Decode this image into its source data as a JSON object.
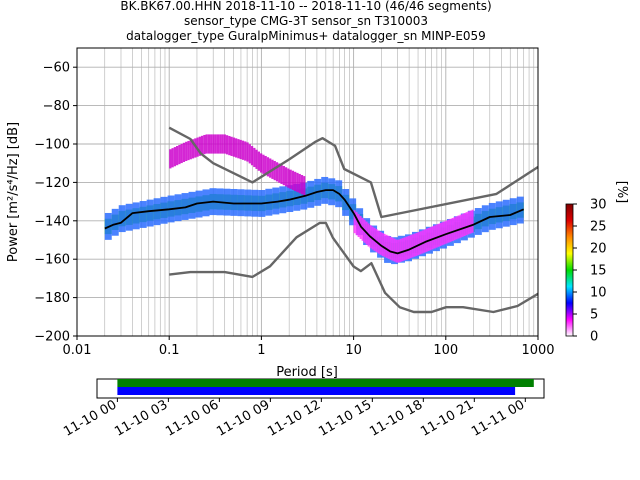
{
  "chart_data": {
    "type": "heatmap",
    "title_lines": [
      "BK.BK67.00.HHN   2018-11-10 -- 2018-11-10  (46/46 segments)",
      "sensor_type CMG-3T sensor_sn T310003",
      "datalogger_type GuralpMinimus+ datalogger_sn MINP-E059"
    ],
    "xlabel": "Period [s]",
    "ylabel": "Power [m²/s⁴/Hz] [dB]",
    "xscale": "log",
    "xlim": [
      0.01,
      1000
    ],
    "ylim": [
      -200,
      -50
    ],
    "x_ticks": [
      {
        "value": 0.01,
        "label": "0.01"
      },
      {
        "value": 0.1,
        "label": "0.1"
      },
      {
        "value": 1,
        "label": "1"
      },
      {
        "value": 10,
        "label": "10"
      },
      {
        "value": 100,
        "label": "100"
      },
      {
        "value": 1000,
        "label": "1000"
      }
    ],
    "y_ticks": [
      {
        "value": -60,
        "label": "−60"
      },
      {
        "value": -80,
        "label": "−80"
      },
      {
        "value": -100,
        "label": "−100"
      },
      {
        "value": -120,
        "label": "−120"
      },
      {
        "value": -140,
        "label": "−140"
      },
      {
        "value": -160,
        "label": "−160"
      },
      {
        "value": -180,
        "label": "−180"
      },
      {
        "value": -200,
        "label": "−200"
      }
    ],
    "grid": true,
    "series": [
      {
        "role": "mean",
        "color": "#000000",
        "x": [
          0.02,
          0.025,
          0.03,
          0.04,
          0.06,
          0.1,
          0.15,
          0.2,
          0.3,
          0.5,
          0.8,
          1,
          1.5,
          2,
          3,
          4,
          5,
          6,
          7,
          8,
          10,
          12,
          15,
          20,
          25,
          30,
          40,
          60,
          100,
          200,
          300,
          500,
          700
        ],
        "y": [
          -144,
          -142,
          -141,
          -136,
          -135,
          -134,
          -133,
          -131,
          -130,
          -131,
          -131,
          -131,
          -130,
          -129,
          -127,
          -125,
          -124,
          -124,
          -126,
          -129,
          -136,
          -143,
          -148,
          -153,
          -156,
          -157,
          -155,
          -151,
          -147,
          -142,
          -138,
          -137,
          -134
        ]
      },
      {
        "role": "high_noise_model",
        "color": "#666666",
        "x": [
          0.1,
          0.17,
          0.22,
          0.3,
          0.8,
          2,
          3.8,
          4.6,
          6.3,
          7.9,
          15.4,
          20,
          354.8,
          1000
        ],
        "y": [
          -91.5,
          -97.4,
          -105,
          -110,
          -120,
          -108,
          -99,
          -97,
          -101,
          -113,
          -120,
          -138,
          -126,
          -112
        ]
      },
      {
        "role": "low_noise_model",
        "color": "#666666",
        "x": [
          0.1,
          0.17,
          0.4,
          0.8,
          1.24,
          2.4,
          4.3,
          5,
          6,
          10,
          12,
          15.6,
          21.9,
          31.6,
          45,
          70,
          101,
          154,
          328,
          600,
          1000
        ],
        "y": [
          -168,
          -166.7,
          -166.7,
          -169.2,
          -163.7,
          -148.6,
          -141.1,
          -141.1,
          -149,
          -163.8,
          -166.2,
          -162.1,
          -177.5,
          -185,
          -187.5,
          -187.5,
          -185,
          -185,
          -187.5,
          -184.4,
          -178
        ]
      }
    ],
    "density_bands": [
      {
        "x": [
          0.02,
          0.03,
          0.1,
          0.3,
          1,
          3,
          5,
          7,
          10,
          15,
          25,
          40,
          100,
          300,
          700
        ],
        "y_center": [
          -144,
          -139,
          -134,
          -130,
          -131,
          -127,
          -124,
          -126,
          -136,
          -148,
          -156,
          -154,
          -147,
          -138,
          -134
        ],
        "half_width": 4,
        "color": "#00e000"
      },
      {
        "x": [
          0.02,
          0.03,
          0.1,
          0.3,
          1,
          3,
          5,
          7,
          10,
          15,
          25,
          40,
          100,
          300,
          700
        ],
        "y_center": [
          -144,
          -139,
          -134,
          -130,
          -131,
          -127,
          -124,
          -126,
          -136,
          -148,
          -156,
          -154,
          -147,
          -138,
          -134
        ],
        "half_width": 7,
        "color": "#2a6cff"
      },
      {
        "x": [
          0.1,
          0.15,
          0.25,
          0.4,
          0.7,
          1,
          2,
          3
        ],
        "y_center": [
          -108,
          -104,
          -100,
          -100,
          -104,
          -110,
          -118,
          -122
        ],
        "half_width": 5,
        "color": "#cc00cc"
      },
      {
        "x": [
          10,
          15,
          20,
          30,
          50,
          100,
          200
        ],
        "y_center": [
          -140,
          -148,
          -152,
          -156,
          -152,
          -146,
          -140
        ],
        "half_width": 6,
        "color": "#ff33ff"
      }
    ],
    "colorbar": {
      "label": "[%]",
      "ticks": [
        {
          "value": 0,
          "label": "0"
        },
        {
          "value": 5,
          "label": "5"
        },
        {
          "value": 10,
          "label": "10"
        },
        {
          "value": 15,
          "label": "15"
        },
        {
          "value": 20,
          "label": "20"
        },
        {
          "value": 25,
          "label": "25"
        },
        {
          "value": 30,
          "label": "30"
        }
      ],
      "range": [
        0,
        30
      ],
      "stops": [
        "#ffffff",
        "#ff00ff",
        "#0000ff",
        "#00e5ff",
        "#00dd00",
        "#ffff00",
        "#ff8800",
        "#dd0000",
        "#800000"
      ]
    },
    "timeline": {
      "ticks": [
        "11-10 00",
        "11-10 03",
        "11-10 06",
        "11-10 09",
        "11-10 12",
        "11-10 15",
        "11-10 18",
        "11-10 21",
        "11-11 00"
      ],
      "range_hours": [
        -1.2,
        25.1
      ],
      "bars": [
        {
          "start": 0,
          "end": 24.5,
          "color": "#008000"
        },
        {
          "start": 0,
          "end": 23.4,
          "color": "#0000ff"
        }
      ]
    }
  }
}
